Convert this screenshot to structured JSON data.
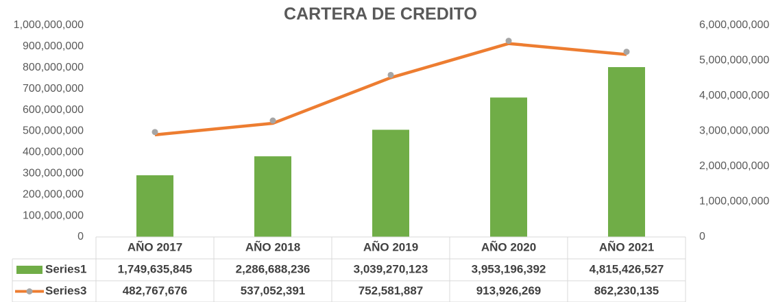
{
  "chart_data": {
    "type": "bar-line",
    "title": "CARTERA DE CREDITO",
    "categories": [
      "AÑO 2017",
      "AÑO 2018",
      "AÑO 2019",
      "AÑO 2020",
      "AÑO 2021"
    ],
    "series": [
      {
        "name": "Series1",
        "type": "bar",
        "axis": "y2",
        "color": "#70ad47",
        "values": [
          1749635845,
          2286688236,
          3039270123,
          3953196392,
          4815426527
        ],
        "value_labels": [
          "1,749,635,845",
          "2,286,688,236",
          "3,039,270,123",
          "3,953,196,392",
          "4,815,426,527"
        ]
      },
      {
        "name": "Series3",
        "type": "line",
        "axis": "y",
        "color": "#ed7d31",
        "marker_color": "#a5a5a5",
        "values": [
          482767676,
          537052391,
          752581887,
          913926269,
          862230135
        ],
        "value_labels": [
          "482,767,676",
          "537,052,391",
          "752,581,887",
          "913,926,269",
          "862,230,135"
        ]
      }
    ],
    "ylim": [
      0,
      1000000000
    ],
    "yticks": [
      0,
      {
        "value": 100000000,
        "label": "100,000,000"
      },
      {
        "value": 200000000,
        "label": "200,000,000"
      },
      {
        "value": 300000000,
        "label": "300,000,000"
      },
      {
        "value": 400000000,
        "label": "400,000,000"
      },
      {
        "value": 500000000,
        "label": "500,000,000"
      },
      {
        "value": 600000000,
        "label": "600,000,000"
      },
      {
        "value": 700000000,
        "label": "700,000,000"
      },
      {
        "value": 800000000,
        "label": "800,000,000"
      },
      {
        "value": 900000000,
        "label": "900,000,000"
      },
      {
        "value": 1000000000,
        "label": "1,000,000,000"
      }
    ],
    "y2lim": [
      0,
      6000000000
    ],
    "y2ticks": [
      0,
      {
        "value": 1000000000,
        "label": "1,000,000,000"
      },
      {
        "value": 2000000000,
        "label": "2,000,000,000"
      },
      {
        "value": 3000000000,
        "label": "3,000,000,000"
      },
      {
        "value": 4000000000,
        "label": "4,000,000,000"
      },
      {
        "value": 5000000000,
        "label": "5,000,000,000"
      },
      {
        "value": 6000000000,
        "label": "6,000,000,000"
      }
    ],
    "grid": false,
    "data_table": true
  }
}
